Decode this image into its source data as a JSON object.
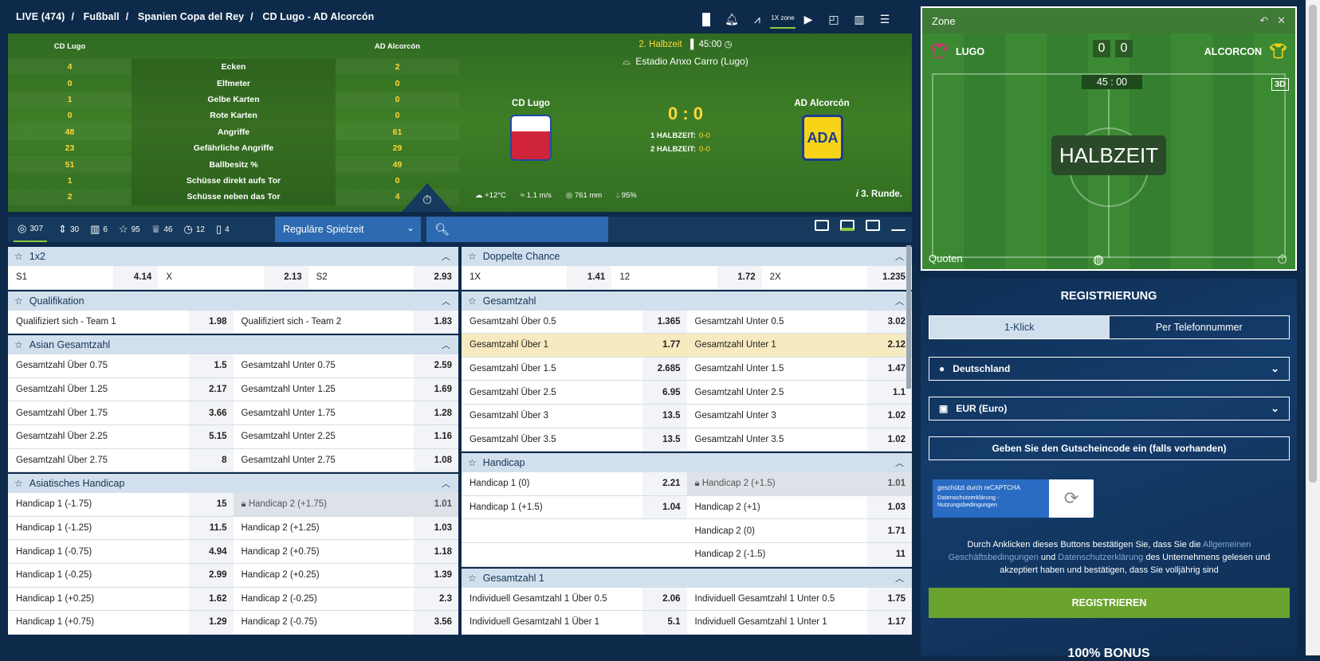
{
  "breadcrumb": {
    "live": "LIVE (474)",
    "sport": "Fußball",
    "league": "Spanien Copa del Rey",
    "match": "CD Lugo - AD Alcorcón",
    "sep": "/"
  },
  "top_icons": [
    "stats-icon",
    "bell-icon",
    "chart-icon",
    "1x-zone-icon",
    "play-icon",
    "window-icon",
    "bars-icon",
    "list-icon"
  ],
  "zone_label": "1X zone",
  "stats": {
    "team1": "CD Lugo",
    "team2": "AD Alcorcón",
    "rows": [
      {
        "a": "4",
        "l": "Ecken",
        "b": "2"
      },
      {
        "a": "0",
        "l": "Elfmeter",
        "b": "0"
      },
      {
        "a": "1",
        "l": "Gelbe Karten",
        "b": "0"
      },
      {
        "a": "0",
        "l": "Rote Karten",
        "b": "0"
      },
      {
        "a": "48",
        "l": "Angriffe",
        "b": "61"
      },
      {
        "a": "23",
        "l": "Gefährliche Angriffe",
        "b": "29"
      },
      {
        "a": "51",
        "l": "Ballbesitz %",
        "b": "49"
      },
      {
        "a": "1",
        "l": "Schüsse direkt aufs Tor",
        "b": "0"
      },
      {
        "a": "2",
        "l": "Schüsse neben das Tor",
        "b": "4"
      }
    ]
  },
  "match": {
    "period": "2. Halbzeit",
    "time": "45:00",
    "stadium": "Estadio Anxo Carro (Lugo)",
    "team1": "CD Lugo",
    "team2": "AD Alcorcón",
    "score": "0 : 0",
    "h1_label": "1 HALBZEIT:",
    "h1": "0-0",
    "h2_label": "2 HALBZEIT:",
    "h2": "0-0",
    "crest2": "ADA",
    "temp": "+12°C",
    "wind": "1.1 m/s",
    "pressure": "761 mm",
    "humidity": "95%",
    "round": "3. Runde."
  },
  "filters": [
    {
      "icon": "◎",
      "count": "307"
    },
    {
      "icon": "⇕",
      "count": "30"
    },
    {
      "icon": "▥",
      "count": "6"
    },
    {
      "icon": "☆",
      "count": "95"
    },
    {
      "icon": "♕",
      "count": "46"
    },
    {
      "icon": "◷",
      "count": "12"
    },
    {
      "icon": "▯",
      "count": "4"
    }
  ],
  "period_select": "Reguläre Spielzeit",
  "left_markets": [
    {
      "title": "1x2",
      "cols": 3,
      "rows": [
        [
          {
            "n": "S1",
            "o": "4.14"
          },
          {
            "n": "X",
            "o": "2.13"
          },
          {
            "n": "S2",
            "o": "2.93"
          }
        ]
      ]
    },
    {
      "title": "Qualifikation",
      "cols": 2,
      "rows": [
        [
          {
            "n": "Qualifiziert sich - Team 1",
            "o": "1.98"
          },
          {
            "n": "Qualifiziert sich - Team 2",
            "o": "1.83"
          }
        ]
      ]
    },
    {
      "title": "Asian Gesamtzahl",
      "cols": 2,
      "rows": [
        [
          {
            "n": "Gesamtzahl Über 0.75",
            "o": "1.5"
          },
          {
            "n": "Gesamtzahl Unter 0.75",
            "o": "2.59"
          }
        ],
        [
          {
            "n": "Gesamtzahl Über 1.25",
            "o": "2.17"
          },
          {
            "n": "Gesamtzahl Unter 1.25",
            "o": "1.69"
          }
        ],
        [
          {
            "n": "Gesamtzahl Über 1.75",
            "o": "3.66"
          },
          {
            "n": "Gesamtzahl Unter 1.75",
            "o": "1.28"
          }
        ],
        [
          {
            "n": "Gesamtzahl Über 2.25",
            "o": "5.15"
          },
          {
            "n": "Gesamtzahl Unter 2.25",
            "o": "1.16"
          }
        ],
        [
          {
            "n": "Gesamtzahl Über 2.75",
            "o": "8"
          },
          {
            "n": "Gesamtzahl Unter 2.75",
            "o": "1.08"
          }
        ]
      ]
    },
    {
      "title": "Asiatisches Handicap",
      "cols": 2,
      "rows": [
        [
          {
            "n": "Handicap 1 (-1.75)",
            "o": "15"
          },
          {
            "n": "Handicap 2 (+1.75)",
            "o": "1.01",
            "locked": true
          }
        ],
        [
          {
            "n": "Handicap 1 (-1.25)",
            "o": "11.5"
          },
          {
            "n": "Handicap 2 (+1.25)",
            "o": "1.03"
          }
        ],
        [
          {
            "n": "Handicap 1 (-0.75)",
            "o": "4.94"
          },
          {
            "n": "Handicap 2 (+0.75)",
            "o": "1.18"
          }
        ],
        [
          {
            "n": "Handicap 1 (-0.25)",
            "o": "2.99"
          },
          {
            "n": "Handicap 2 (+0.25)",
            "o": "1.39"
          }
        ],
        [
          {
            "n": "Handicap 1 (+0.25)",
            "o": "1.62"
          },
          {
            "n": "Handicap 2 (-0.25)",
            "o": "2.3"
          }
        ],
        [
          {
            "n": "Handicap 1 (+0.75)",
            "o": "1.29"
          },
          {
            "n": "Handicap 2 (-0.75)",
            "o": "3.56"
          }
        ]
      ]
    }
  ],
  "right_markets": [
    {
      "title": "Doppelte Chance",
      "cols": 3,
      "rows": [
        [
          {
            "n": "1X",
            "o": "1.41"
          },
          {
            "n": "12",
            "o": "1.72"
          },
          {
            "n": "2X",
            "o": "1.235"
          }
        ]
      ]
    },
    {
      "title": "Gesamtzahl",
      "cols": 2,
      "rows": [
        [
          {
            "n": "Gesamtzahl Über 0.5",
            "o": "1.365"
          },
          {
            "n": "Gesamtzahl Unter 0.5",
            "o": "3.02"
          }
        ],
        [
          {
            "n": "Gesamtzahl Über 1",
            "o": "1.77",
            "hl": true
          },
          {
            "n": "Gesamtzahl Unter 1",
            "o": "2.12",
            "hl": true
          }
        ],
        [
          {
            "n": "Gesamtzahl Über 1.5",
            "o": "2.685"
          },
          {
            "n": "Gesamtzahl Unter 1.5",
            "o": "1.47"
          }
        ],
        [
          {
            "n": "Gesamtzahl Über 2.5",
            "o": "6.95"
          },
          {
            "n": "Gesamtzahl Unter 2.5",
            "o": "1.1"
          }
        ],
        [
          {
            "n": "Gesamtzahl Über 3",
            "o": "13.5"
          },
          {
            "n": "Gesamtzahl Unter 3",
            "o": "1.02"
          }
        ],
        [
          {
            "n": "Gesamtzahl Über 3.5",
            "o": "13.5"
          },
          {
            "n": "Gesamtzahl Unter 3.5",
            "o": "1.02"
          }
        ]
      ]
    },
    {
      "title": "Handicap",
      "cols": 2,
      "rows": [
        [
          {
            "n": "Handicap 1 (0)",
            "o": "2.21"
          },
          {
            "n": "Handicap 2 (+1.5)",
            "o": "1.01",
            "locked": true
          }
        ],
        [
          {
            "n": "Handicap 1 (+1.5)",
            "o": "1.04"
          },
          {
            "n": "Handicap 2 (+1)",
            "o": "1.03"
          }
        ],
        [
          {
            "empty": true
          },
          {
            "n": "Handicap 2 (0)",
            "o": "1.71"
          }
        ],
        [
          {
            "empty": true
          },
          {
            "n": "Handicap 2 (-1.5)",
            "o": "11"
          }
        ]
      ]
    },
    {
      "title": "Gesamtzahl 1",
      "cols": 2,
      "rows": [
        [
          {
            "n": "Individuell Gesamtzahl 1 Über 0.5",
            "o": "2.06"
          },
          {
            "n": "Individuell Gesamtzahl 1 Unter 0.5",
            "o": "1.75"
          }
        ],
        [
          {
            "n": "Individuell Gesamtzahl 1 Über 1",
            "o": "5.1"
          },
          {
            "n": "Individuell Gesamtzahl 1 Unter 1",
            "o": "1.17"
          }
        ]
      ]
    }
  ],
  "zone": {
    "title": "Zone",
    "team1": "LUGO",
    "team2": "ALCORCON",
    "score1": "0",
    "score2": "0",
    "time": "45 : 00",
    "mode": "3D",
    "status": "HALBZEIT",
    "odds_label": "Quoten"
  },
  "register": {
    "title": "REGISTRIERUNG",
    "tab1": "1-Klick",
    "tab2": "Per Telefonnummer",
    "country": "Deutschland",
    "currency": "EUR (Euro)",
    "promo": "Geben Sie den Gutscheincode ein (falls vorhanden)",
    "captcha1": "geschützt durch reCAPTCHA",
    "captcha2": "Datenschutzerklärung - Nutzungsbedingungen",
    "terms_a": "Durch Anklicken dieses Buttons bestätigen Sie, dass Sie die ",
    "terms_link1": "Allgemeinen Geschäftsbedingungen",
    "terms_b": " und ",
    "terms_link2": "Datenschutzerklärung",
    "terms_c": " des Unternehmens gelesen und akzeptiert haben und bestätigen, dass Sie volljährig sind",
    "button": "REGISTRIEREN",
    "bonus": "100% BONUS"
  }
}
